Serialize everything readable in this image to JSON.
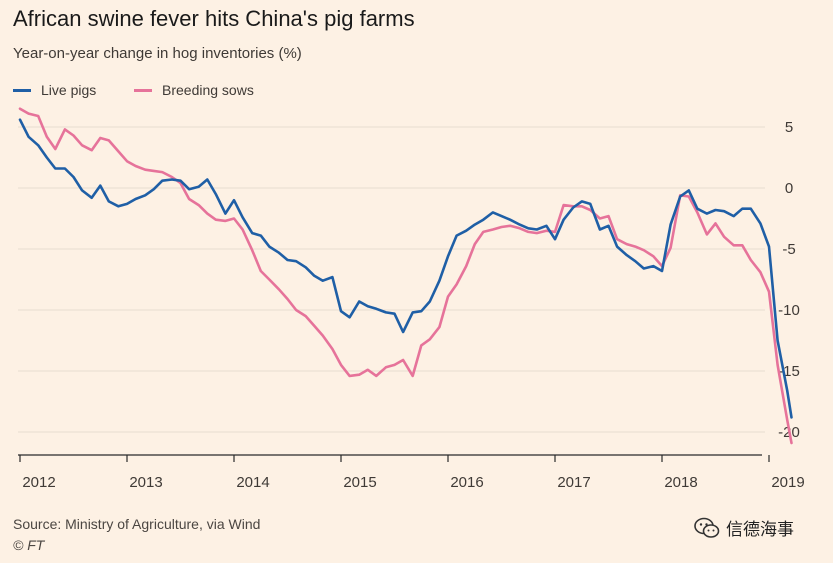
{
  "header": {
    "title": "African swine fever hits China's pig farms",
    "subtitle": "Year-on-year change in hog inventories (%)"
  },
  "footer": {
    "source": "Source: Ministry of Agriculture, via Wind",
    "credit": "© FT",
    "watermark": "信德海事",
    "watermark_icon": "wechat-icon"
  },
  "colors": {
    "background": "#fdf1e4",
    "live_pigs": "#1f5fa6",
    "breeding_sows": "#e6739a",
    "grid": "#e8ddd1"
  },
  "chart_data": {
    "type": "line",
    "title": "African swine fever hits China's pig farms",
    "subtitle": "Year-on-year change in hog inventories (%)",
    "ylim": [
      -22,
      6.5
    ],
    "xlim": [
      2012.0,
      2019.17
    ],
    "y_ticks": [
      5,
      0,
      -5,
      -10,
      -15,
      -20
    ],
    "y_tick_labels": [
      "5",
      "0",
      "-5",
      "-10",
      "-15",
      "-20"
    ],
    "x_ticks": [
      2012,
      2013,
      2014,
      2015,
      2016,
      2017,
      2018,
      2019
    ],
    "x_tick_labels": [
      "2012",
      "2013",
      "2014",
      "2015",
      "2016",
      "2017",
      "2018",
      "2019"
    ],
    "y_axis_position": "right",
    "grid": "horizontal",
    "legend_position": "top-left",
    "series": [
      {
        "name": "Live pigs",
        "color": "#1f5fa6",
        "points": [
          [
            2012.0,
            5.6
          ],
          [
            2012.08,
            4.2
          ],
          [
            2012.17,
            3.5
          ],
          [
            2012.25,
            2.5
          ],
          [
            2012.33,
            1.6
          ],
          [
            2012.42,
            1.6
          ],
          [
            2012.5,
            0.9
          ],
          [
            2012.58,
            -0.2
          ],
          [
            2012.67,
            -0.8
          ],
          [
            2012.75,
            0.2
          ],
          [
            2012.83,
            -1.1
          ],
          [
            2012.92,
            -1.5
          ],
          [
            2013.0,
            -1.3
          ],
          [
            2013.08,
            -0.9
          ],
          [
            2013.17,
            -0.6
          ],
          [
            2013.25,
            -0.1
          ],
          [
            2013.33,
            0.6
          ],
          [
            2013.42,
            0.7
          ],
          [
            2013.5,
            0.6
          ],
          [
            2013.58,
            -0.1
          ],
          [
            2013.67,
            0.1
          ],
          [
            2013.75,
            0.7
          ],
          [
            2013.83,
            -0.5
          ],
          [
            2013.92,
            -2.1
          ],
          [
            2014.0,
            -1.0
          ],
          [
            2014.08,
            -2.4
          ],
          [
            2014.17,
            -3.7
          ],
          [
            2014.25,
            -3.9
          ],
          [
            2014.33,
            -4.8
          ],
          [
            2014.42,
            -5.3
          ],
          [
            2014.5,
            -5.9
          ],
          [
            2014.58,
            -6.0
          ],
          [
            2014.67,
            -6.5
          ],
          [
            2014.75,
            -7.2
          ],
          [
            2014.83,
            -7.6
          ],
          [
            2014.92,
            -7.3
          ],
          [
            2015.0,
            -10.1
          ],
          [
            2015.08,
            -10.6
          ],
          [
            2015.17,
            -9.3
          ],
          [
            2015.25,
            -9.7
          ],
          [
            2015.33,
            -9.9
          ],
          [
            2015.42,
            -10.2
          ],
          [
            2015.5,
            -10.3
          ],
          [
            2015.58,
            -11.8
          ],
          [
            2015.67,
            -10.2
          ],
          [
            2015.75,
            -10.1
          ],
          [
            2015.83,
            -9.3
          ],
          [
            2015.92,
            -7.6
          ],
          [
            2016.0,
            -5.6
          ],
          [
            2016.08,
            -3.9
          ],
          [
            2016.17,
            -3.5
          ],
          [
            2016.25,
            -3.0
          ],
          [
            2016.33,
            -2.6
          ],
          [
            2016.42,
            -2.0
          ],
          [
            2016.5,
            -2.3
          ],
          [
            2016.58,
            -2.6
          ],
          [
            2016.67,
            -3.0
          ],
          [
            2016.75,
            -3.3
          ],
          [
            2016.83,
            -3.4
          ],
          [
            2016.92,
            -3.1
          ],
          [
            2017.0,
            -4.2
          ],
          [
            2017.08,
            -2.6
          ],
          [
            2017.17,
            -1.6
          ],
          [
            2017.25,
            -1.1
          ],
          [
            2017.33,
            -1.3
          ],
          [
            2017.42,
            -3.4
          ],
          [
            2017.5,
            -3.1
          ],
          [
            2017.58,
            -4.8
          ],
          [
            2017.67,
            -5.5
          ],
          [
            2017.75,
            -6.0
          ],
          [
            2017.83,
            -6.6
          ],
          [
            2017.92,
            -6.4
          ],
          [
            2018.0,
            -6.8
          ],
          [
            2018.08,
            -3.0
          ],
          [
            2018.17,
            -0.7
          ],
          [
            2018.25,
            -0.2
          ],
          [
            2018.33,
            -1.7
          ],
          [
            2018.42,
            -2.1
          ],
          [
            2018.5,
            -1.8
          ],
          [
            2018.58,
            -1.9
          ],
          [
            2018.67,
            -2.3
          ],
          [
            2018.75,
            -1.7
          ],
          [
            2018.83,
            -1.7
          ],
          [
            2018.92,
            -2.9
          ],
          [
            2019.0,
            -4.8
          ],
          [
            2019.08,
            -12.5
          ],
          [
            2019.17,
            -16.6
          ],
          [
            2019.21,
            -18.8
          ]
        ]
      },
      {
        "name": "Breeding sows",
        "color": "#e6739a",
        "points": [
          [
            2012.0,
            6.5
          ],
          [
            2012.08,
            6.1
          ],
          [
            2012.17,
            5.9
          ],
          [
            2012.25,
            4.2
          ],
          [
            2012.33,
            3.2
          ],
          [
            2012.42,
            4.8
          ],
          [
            2012.5,
            4.3
          ],
          [
            2012.58,
            3.5
          ],
          [
            2012.67,
            3.1
          ],
          [
            2012.75,
            4.1
          ],
          [
            2012.83,
            3.9
          ],
          [
            2012.92,
            3.0
          ],
          [
            2013.0,
            2.2
          ],
          [
            2013.08,
            1.8
          ],
          [
            2013.17,
            1.5
          ],
          [
            2013.25,
            1.4
          ],
          [
            2013.33,
            1.3
          ],
          [
            2013.42,
            0.9
          ],
          [
            2013.5,
            0.4
          ],
          [
            2013.58,
            -0.9
          ],
          [
            2013.67,
            -1.4
          ],
          [
            2013.75,
            -2.1
          ],
          [
            2013.83,
            -2.6
          ],
          [
            2013.92,
            -2.7
          ],
          [
            2014.0,
            -2.5
          ],
          [
            2014.08,
            -3.4
          ],
          [
            2014.17,
            -5.1
          ],
          [
            2014.25,
            -6.8
          ],
          [
            2014.33,
            -7.5
          ],
          [
            2014.42,
            -8.3
          ],
          [
            2014.5,
            -9.1
          ],
          [
            2014.58,
            -10.0
          ],
          [
            2014.67,
            -10.5
          ],
          [
            2014.75,
            -11.3
          ],
          [
            2014.83,
            -12.1
          ],
          [
            2014.92,
            -13.2
          ],
          [
            2015.0,
            -14.5
          ],
          [
            2015.08,
            -15.4
          ],
          [
            2015.17,
            -15.3
          ],
          [
            2015.25,
            -14.9
          ],
          [
            2015.33,
            -15.4
          ],
          [
            2015.42,
            -14.7
          ],
          [
            2015.5,
            -14.5
          ],
          [
            2015.58,
            -14.1
          ],
          [
            2015.67,
            -15.4
          ],
          [
            2015.75,
            -12.9
          ],
          [
            2015.83,
            -12.4
          ],
          [
            2015.92,
            -11.4
          ],
          [
            2016.0,
            -8.9
          ],
          [
            2016.08,
            -7.9
          ],
          [
            2016.17,
            -6.4
          ],
          [
            2016.25,
            -4.6
          ],
          [
            2016.33,
            -3.6
          ],
          [
            2016.42,
            -3.4
          ],
          [
            2016.5,
            -3.2
          ],
          [
            2016.58,
            -3.1
          ],
          [
            2016.67,
            -3.3
          ],
          [
            2016.75,
            -3.6
          ],
          [
            2016.83,
            -3.7
          ],
          [
            2016.92,
            -3.5
          ],
          [
            2017.0,
            -3.6
          ],
          [
            2017.08,
            -1.4
          ],
          [
            2017.17,
            -1.5
          ],
          [
            2017.25,
            -1.5
          ],
          [
            2017.33,
            -1.8
          ],
          [
            2017.42,
            -2.5
          ],
          [
            2017.5,
            -2.3
          ],
          [
            2017.58,
            -4.2
          ],
          [
            2017.67,
            -4.6
          ],
          [
            2017.75,
            -4.8
          ],
          [
            2017.83,
            -5.1
          ],
          [
            2017.92,
            -5.6
          ],
          [
            2018.0,
            -6.4
          ],
          [
            2018.08,
            -4.9
          ],
          [
            2018.17,
            -0.6
          ],
          [
            2018.25,
            -0.7
          ],
          [
            2018.33,
            -2.0
          ],
          [
            2018.42,
            -3.8
          ],
          [
            2018.5,
            -2.9
          ],
          [
            2018.58,
            -4.0
          ],
          [
            2018.67,
            -4.7
          ],
          [
            2018.75,
            -4.7
          ],
          [
            2018.83,
            -5.9
          ],
          [
            2018.92,
            -6.9
          ],
          [
            2019.0,
            -8.5
          ],
          [
            2019.08,
            -14.5
          ],
          [
            2019.17,
            -19.0
          ],
          [
            2019.21,
            -20.9
          ]
        ]
      }
    ]
  }
}
